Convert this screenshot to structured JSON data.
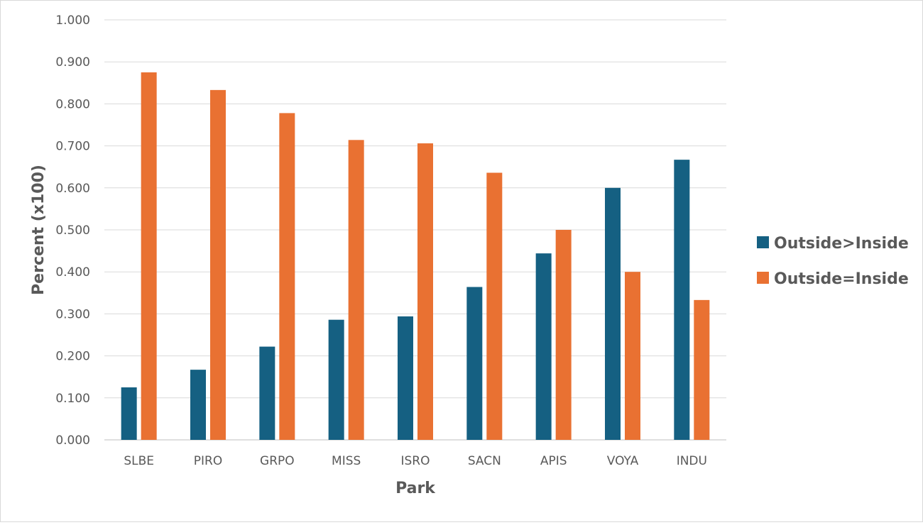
{
  "chart_data": {
    "type": "bar",
    "title": "",
    "xlabel": "Park",
    "ylabel": "Percent (x100)",
    "ylim": [
      0,
      1
    ],
    "ytick_step": 0.1,
    "ytick_labels": [
      "0.000",
      "0.100",
      "0.200",
      "0.300",
      "0.400",
      "0.500",
      "0.600",
      "0.700",
      "0.800",
      "0.900",
      "1.000"
    ],
    "grid": true,
    "legend_position": "right",
    "categories": [
      "SLBE",
      "PIRO",
      "GRPO",
      "MISS",
      "ISRO",
      "SACN",
      "APIS",
      "VOYA",
      "INDU"
    ],
    "series": [
      {
        "name": "Outside>Inside",
        "color": "#156082",
        "values": [
          0.125,
          0.167,
          0.222,
          0.286,
          0.294,
          0.364,
          0.444,
          0.6,
          0.667
        ]
      },
      {
        "name": "Outside=Inside",
        "color": "#E97132",
        "values": [
          0.875,
          0.833,
          0.778,
          0.714,
          0.706,
          0.636,
          0.5,
          0.4,
          0.333
        ]
      }
    ]
  }
}
